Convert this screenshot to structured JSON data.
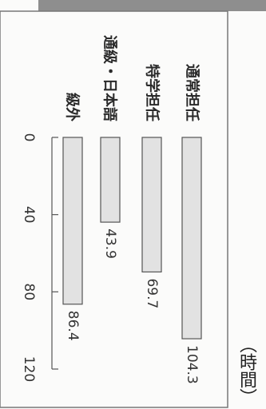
{
  "chart_data": {
    "type": "bar",
    "orientation": "horizontal (rotated page)",
    "unit_label": "（時間）",
    "categories": [
      "通常担任",
      "特学担任",
      "通級・日本語",
      "級外"
    ],
    "values": [
      104.3,
      69.7,
      43.9,
      86.4
    ],
    "value_labels": [
      "104.3",
      "69.7",
      "43.9",
      "86.4"
    ],
    "xlim": [
      0,
      120
    ],
    "ticks": [
      "0",
      "40",
      "80",
      "120"
    ],
    "colors": {
      "bar_fill": "#e2e2e2",
      "bar_stroke": "#555555",
      "border": "#777777"
    }
  }
}
